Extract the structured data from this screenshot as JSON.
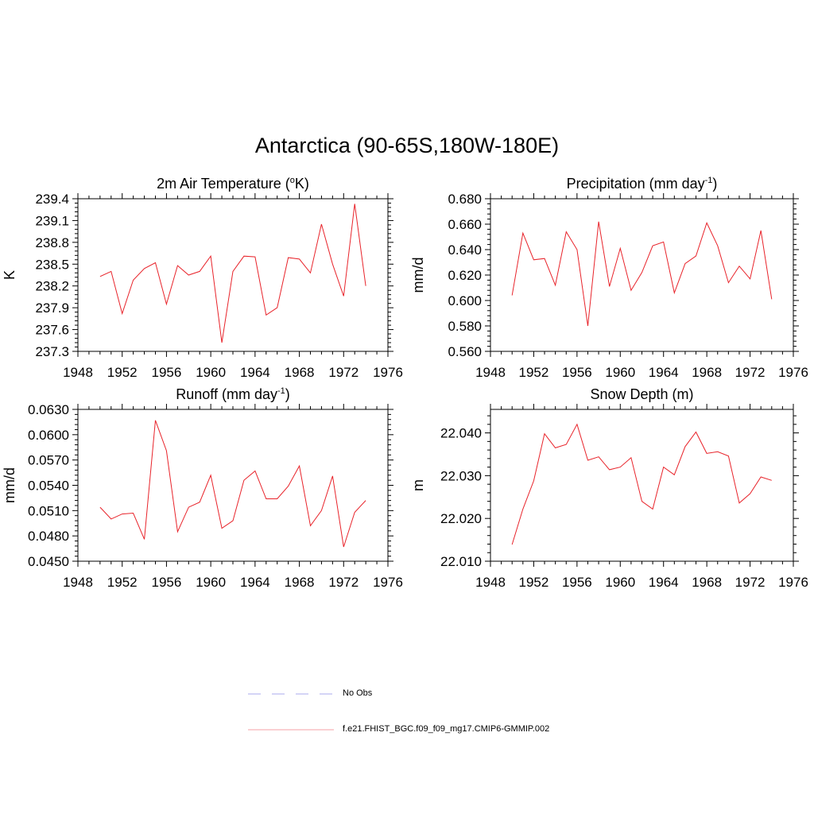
{
  "title": "Antarctica (90-65S,180W-180E)",
  "colors": {
    "model": "#e8232a",
    "obs": "#a9a9ee",
    "legend_model": "#f4a0a4"
  },
  "legend": [
    {
      "label": "No Obs",
      "style": "dashed",
      "color": "#a9a9ee"
    },
    {
      "label": "f.e21.FHIST_BGC.f09_f09_mg17.CMIP6-GMMIP.002",
      "style": "solid",
      "color": "#f4a0a4"
    }
  ],
  "chart_data": [
    {
      "type": "line",
      "title": "2m Air Temperature (",
      "title_sup": "o",
      "title_after": "K)",
      "ylabel": "K",
      "xlim": [
        1948,
        1976
      ],
      "ylim": [
        237.3,
        239.4
      ],
      "xticks": [
        "1948",
        "1952",
        "1956",
        "1960",
        "1964",
        "1968",
        "1972",
        "1976"
      ],
      "yticks": [
        "237.3",
        "237.6",
        "237.9",
        "238.2",
        "238.5",
        "238.8",
        "239.1",
        "239.4"
      ],
      "x": [
        1950,
        1951,
        1952,
        1953,
        1954,
        1955,
        1956,
        1957,
        1958,
        1959,
        1960,
        1961,
        1962,
        1963,
        1964,
        1965,
        1966,
        1967,
        1968,
        1969,
        1970,
        1971,
        1972,
        1973,
        1974
      ],
      "series": [
        {
          "values": [
            238.33,
            238.4,
            237.82,
            238.28,
            238.44,
            238.52,
            237.95,
            238.48,
            238.35,
            238.4,
            238.61,
            237.42,
            238.4,
            238.61,
            238.6,
            237.8,
            237.9,
            238.59,
            238.57,
            238.38,
            239.05,
            238.5,
            238.06,
            239.33,
            238.2
          ]
        }
      ]
    },
    {
      "type": "line",
      "title": "Precipitation (mm day",
      "title_sup": "-1",
      "title_after": ")",
      "ylabel": "mm/d",
      "xlim": [
        1948,
        1976
      ],
      "ylim": [
        0.56,
        0.68
      ],
      "xticks": [
        "1948",
        "1952",
        "1956",
        "1960",
        "1964",
        "1968",
        "1972",
        "1976"
      ],
      "yticks": [
        "0.560",
        "0.580",
        "0.600",
        "0.620",
        "0.640",
        "0.660",
        "0.680"
      ],
      "x": [
        1950,
        1951,
        1952,
        1953,
        1954,
        1955,
        1956,
        1957,
        1958,
        1959,
        1960,
        1961,
        1962,
        1963,
        1964,
        1965,
        1966,
        1967,
        1968,
        1969,
        1970,
        1971,
        1972,
        1973,
        1974
      ],
      "series": [
        {
          "values": [
            0.604,
            0.653,
            0.632,
            0.633,
            0.612,
            0.654,
            0.64,
            0.58,
            0.662,
            0.611,
            0.641,
            0.608,
            0.622,
            0.643,
            0.646,
            0.606,
            0.629,
            0.635,
            0.661,
            0.643,
            0.614,
            0.627,
            0.617,
            0.655,
            0.601
          ]
        }
      ]
    },
    {
      "type": "line",
      "title": "Runoff (mm day",
      "title_sup": "-1",
      "title_after": ")",
      "ylabel": "mm/d",
      "xlim": [
        1948,
        1976
      ],
      "ylim": [
        0.045,
        0.063
      ],
      "xticks": [
        "1948",
        "1952",
        "1956",
        "1960",
        "1964",
        "1968",
        "1972",
        "1976"
      ],
      "yticks": [
        "0.0450",
        "0.0480",
        "0.0510",
        "0.0540",
        "0.0570",
        "0.0600",
        "0.0630"
      ],
      "x": [
        1950,
        1951,
        1952,
        1953,
        1954,
        1955,
        1956,
        1957,
        1958,
        1959,
        1960,
        1961,
        1962,
        1963,
        1964,
        1965,
        1966,
        1967,
        1968,
        1969,
        1970,
        1971,
        1972,
        1973,
        1974
      ],
      "series": [
        {
          "values": [
            0.0514,
            0.05,
            0.0506,
            0.0507,
            0.0476,
            0.0617,
            0.0581,
            0.0485,
            0.0514,
            0.052,
            0.0552,
            0.0489,
            0.0498,
            0.0546,
            0.0557,
            0.0524,
            0.0524,
            0.0539,
            0.0563,
            0.0492,
            0.051,
            0.0551,
            0.0467,
            0.0508,
            0.0522
          ]
        }
      ]
    },
    {
      "type": "line",
      "title": "Snow Depth (m)",
      "title_sup": "",
      "title_after": "",
      "ylabel": "m",
      "xlim": [
        1948,
        1976
      ],
      "ylim": [
        22.01,
        22.0455
      ],
      "xticks": [
        "1948",
        "1952",
        "1956",
        "1960",
        "1964",
        "1968",
        "1972",
        "1976"
      ],
      "yticks": [
        "22.010",
        "22.020",
        "22.030",
        "22.040"
      ],
      "x": [
        1950,
        1951,
        1952,
        1953,
        1954,
        1955,
        1956,
        1957,
        1958,
        1959,
        1960,
        1961,
        1962,
        1963,
        1964,
        1965,
        1966,
        1967,
        1968,
        1969,
        1970,
        1971,
        1972,
        1973,
        1974
      ],
      "series": [
        {
          "values": [
            22.0139,
            22.0222,
            22.0288,
            22.0398,
            22.0365,
            22.0373,
            22.042,
            22.0336,
            22.0344,
            22.0314,
            22.032,
            22.0342,
            22.024,
            22.0222,
            22.032,
            22.0302,
            22.0368,
            22.0402,
            22.0352,
            22.0356,
            22.0346,
            22.0236,
            22.0258,
            22.0297,
            22.0289
          ]
        }
      ]
    }
  ]
}
